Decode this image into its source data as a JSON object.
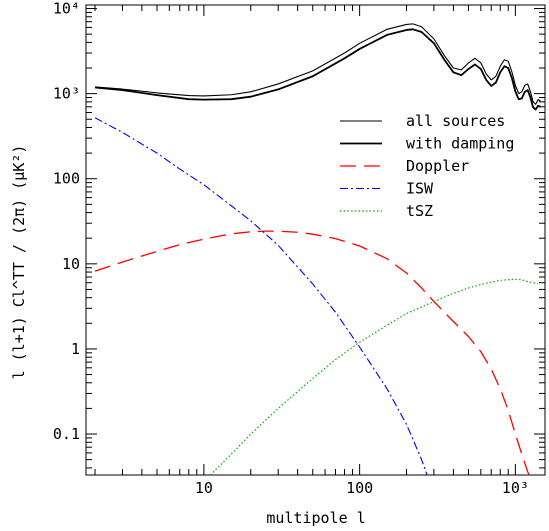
{
  "chart_data": {
    "type": "line",
    "xlabel": "multipole l",
    "ylabel": "l (l+1) Cl^TT / (2π)   (μK²)",
    "xscale": "log",
    "yscale": "log",
    "xlim": [
      1.75,
      1550
    ],
    "ylim": [
      0.033,
      11000
    ],
    "grid": false,
    "legend_position": "middle-right",
    "x_ticks": [
      {
        "value": 10,
        "label": "10"
      },
      {
        "value": 100,
        "label": "100"
      },
      {
        "value": 1000,
        "label": "10³"
      }
    ],
    "y_ticks": [
      {
        "value": 0.1,
        "label": "0.1"
      },
      {
        "value": 1,
        "label": "1"
      },
      {
        "value": 10,
        "label": "10"
      },
      {
        "value": 100,
        "label": "100"
      },
      {
        "value": 1000,
        "label": "10³"
      },
      {
        "value": 10000,
        "label": "10⁴"
      }
    ],
    "series": [
      {
        "name": "all sources",
        "color": "#000000",
        "style": "thin",
        "x": [
          2,
          3,
          5,
          8,
          10,
          15,
          20,
          30,
          50,
          80,
          100,
          150,
          200,
          220,
          250,
          300,
          350,
          400,
          450,
          500,
          550,
          600,
          650,
          700,
          750,
          800,
          850,
          900,
          950,
          1000,
          1050,
          1100,
          1150,
          1200,
          1250,
          1300,
          1350,
          1400,
          1450
        ],
        "y": [
          1200,
          1130,
          1020,
          950,
          940,
          970,
          1050,
          1300,
          1850,
          3000,
          3900,
          5700,
          6500,
          6600,
          6100,
          4400,
          2800,
          2000,
          1900,
          2300,
          2600,
          2300,
          1700,
          1450,
          1600,
          2100,
          2500,
          2400,
          1800,
          1250,
          1000,
          1050,
          1250,
          1300,
          1050,
          800,
          750,
          850,
          820
        ]
      },
      {
        "name": "with damping",
        "color": "#000000",
        "style": "thick",
        "x": [
          2,
          3,
          5,
          8,
          10,
          15,
          20,
          30,
          50,
          80,
          100,
          150,
          200,
          220,
          250,
          300,
          350,
          400,
          450,
          500,
          550,
          600,
          650,
          700,
          750,
          800,
          850,
          900,
          950,
          1000,
          1050,
          1100,
          1150,
          1200,
          1250,
          1300,
          1350,
          1400,
          1450
        ],
        "y": [
          1180,
          1100,
          960,
          860,
          850,
          860,
          920,
          1120,
          1600,
          2600,
          3350,
          4900,
          5600,
          5700,
          5300,
          3900,
          2500,
          1780,
          1650,
          1950,
          2200,
          1950,
          1450,
          1230,
          1350,
          1780,
          2100,
          2000,
          1520,
          1060,
          860,
          880,
          1050,
          1100,
          900,
          690,
          650,
          720,
          700
        ]
      },
      {
        "name": "Doppler",
        "color": "#ff0000",
        "style": "dashed",
        "x": [
          2,
          3,
          5,
          7,
          10,
          15,
          20,
          25,
          30,
          40,
          50,
          70,
          100,
          150,
          200,
          250,
          300,
          350,
          400,
          500,
          600,
          700,
          800,
          900,
          1000,
          1100,
          1200,
          1300
        ],
        "y": [
          8.2,
          10.5,
          14,
          16.8,
          19.5,
          22.5,
          23.8,
          24.2,
          24.2,
          23.5,
          22.3,
          19.8,
          16.2,
          11.5,
          7.8,
          5.2,
          3.6,
          2.7,
          2.1,
          1.4,
          0.93,
          0.58,
          0.34,
          0.19,
          0.1,
          0.058,
          0.036,
          0.026
        ]
      },
      {
        "name": "ISW",
        "color": "#0000ff",
        "style": "dashdot",
        "x": [
          2,
          3,
          5,
          7,
          10,
          15,
          20,
          30,
          50,
          70,
          100,
          150,
          200,
          250,
          280
        ],
        "y": [
          520,
          350,
          200,
          130,
          85,
          48,
          32,
          16.5,
          5.8,
          2.7,
          1.05,
          0.34,
          0.13,
          0.05,
          0.028
        ]
      },
      {
        "name": "tSZ",
        "color": "#00aa00",
        "style": "dotted",
        "x": [
          11,
          15,
          20,
          30,
          50,
          70,
          100,
          150,
          200,
          300,
          400,
          500,
          600,
          700,
          800,
          900,
          1000,
          1100,
          1200,
          1300,
          1400
        ],
        "y": [
          0.033,
          0.058,
          0.1,
          0.2,
          0.45,
          0.75,
          1.2,
          1.9,
          2.6,
          3.6,
          4.5,
          5.2,
          5.7,
          6.1,
          6.4,
          6.5,
          6.6,
          6.5,
          6.2,
          6.0,
          5.9
        ]
      }
    ]
  }
}
